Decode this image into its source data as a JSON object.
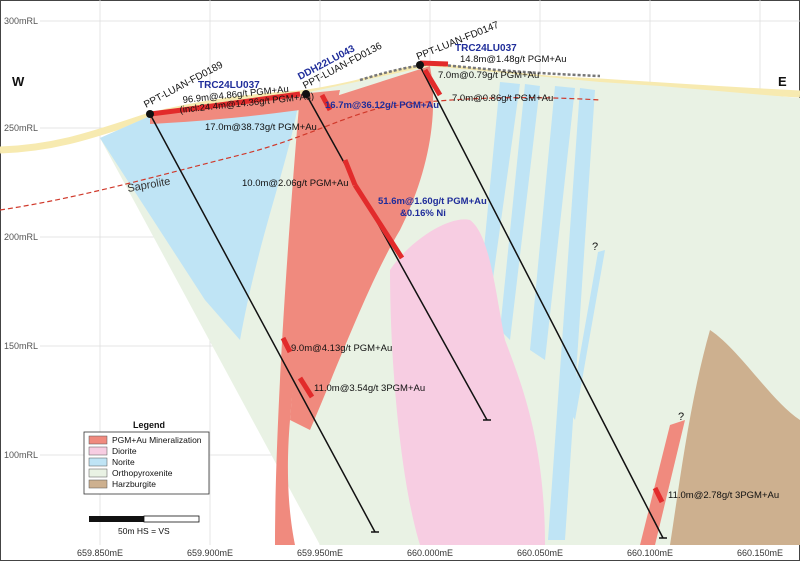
{
  "compass": {
    "west": "W",
    "east": "E"
  },
  "rl_labels": [
    "300mRL",
    "250mRL",
    "200mRL",
    "150mRL",
    "100mRL"
  ],
  "easting_labels": [
    "659.850mE",
    "659.900mE",
    "659.950mE",
    "660.000mE",
    "660.050mE",
    "660.100mE",
    "660.150mE"
  ],
  "holes": [
    {
      "name": "PPT-LUAN-FD0189"
    },
    {
      "name": "PPT-LUAN-FD0136"
    },
    {
      "name": "PPT-LUAN-FD0147"
    }
  ],
  "trenches": [
    {
      "name": "TRC24LU037"
    },
    {
      "name": "DDH22LU043"
    },
    {
      "name": "TRC24LU037"
    }
  ],
  "intercepts": {
    "i1a": "96.9m@4.86g/t PGM+Au",
    "i1b": "(incl:24.4m@14.36g/t PGM+Au)",
    "i2": "17.0m@38.73g/t PGM+Au",
    "i3": "16.7m@36.12g/t PGM+Au",
    "i4": "14.8m@1.48g/t PGM+Au",
    "i5": "7.0m@0.79g/t PGM+Au",
    "i6": "7.0m@0.86g/t PGM+Au",
    "i7": "10.0m@2.06g/t PGM+Au",
    "i8a": "51.6m@1.60g/t PGM+Au",
    "i8b": "&0.16% Ni",
    "i9": "9.0m@4.13g/t PGM+Au",
    "i10": "11.0m@3.54g/t 3PGM+Au",
    "i11": "11.0m@2.78g/t 3PGM+Au"
  },
  "saprolite_label": "Saprolite",
  "question_marks": [
    "?",
    "?"
  ],
  "legend": {
    "title": "Legend",
    "items": [
      {
        "label": "PGM+Au Mineralization",
        "color": "#f08a7e"
      },
      {
        "label": "Diorite",
        "color": "#f7cde2"
      },
      {
        "label": "Norite",
        "color": "#bfe4f5"
      },
      {
        "label": "Orthopyroxenite",
        "color": "#e9f2e4"
      },
      {
        "label": "Harzburgite",
        "color": "#cdb08f"
      }
    ]
  },
  "scale": {
    "label": "50m  HS = VS"
  },
  "colors": {
    "orthopyroxenite": "#e9f2e4",
    "norite": "#bfe4f5",
    "diorite": "#f7cde2",
    "mineralization": "#f08a7e",
    "harzburgite": "#cdb08f",
    "topography": "#f7eab0",
    "intercept_bar": "#e22b2b",
    "annotation_blue": "#1f2d9a"
  }
}
